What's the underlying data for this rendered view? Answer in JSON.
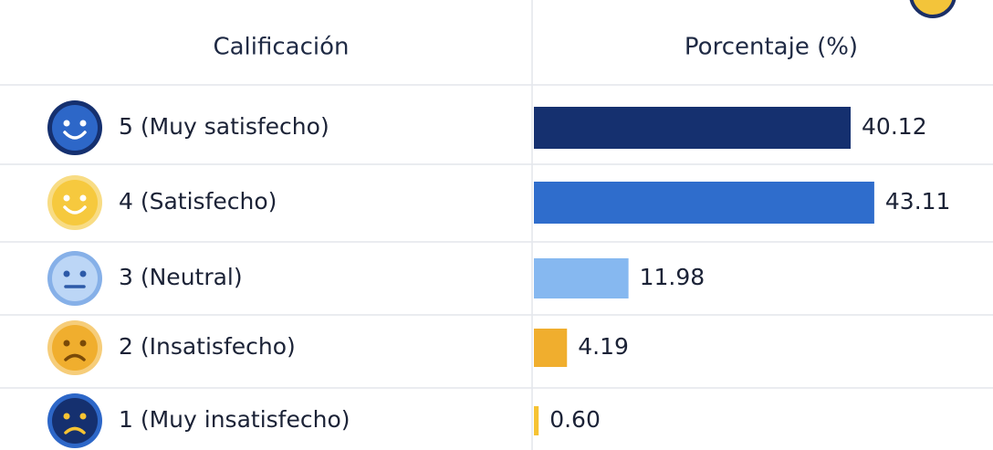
{
  "chart_data": {
    "type": "bar",
    "orientation": "horizontal",
    "column_headers": [
      "Calificación",
      "Porcentaje (%)"
    ],
    "categories": [
      "5 (Muy satisfecho)",
      "4 (Satisfecho)",
      "3 (Neutral)",
      "2 (Insatisfecho)",
      "1 (Muy insatisfecho)"
    ],
    "values": [
      40.12,
      43.11,
      11.98,
      4.19,
      0.6
    ],
    "value_labels": [
      "40.12",
      "43.11",
      "11.98",
      "4.19",
      "0.60"
    ],
    "colors": [
      "#15306f",
      "#2f6dcc",
      "#86b8f0",
      "#f0ae2e",
      "#f6c333"
    ]
  }
}
